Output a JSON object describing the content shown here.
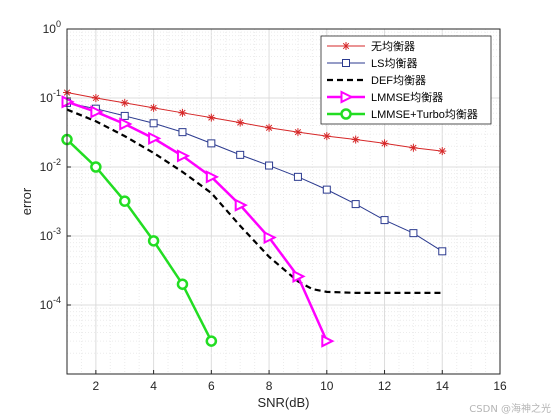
{
  "chart_data": {
    "type": "line",
    "title": "",
    "xlabel": "SNR(dB)",
    "ylabel": "error",
    "xlim": [
      1,
      16
    ],
    "ylim": [
      1e-05,
      1
    ],
    "yscale": "log",
    "grid": true,
    "minor_grid": true,
    "legend_position": "top-right",
    "x_ticks": [
      "2",
      "4",
      "6",
      "8",
      "10",
      "12",
      "14",
      "16"
    ],
    "y_ticks": [
      {
        "base": "10",
        "exp": "0"
      },
      {
        "base": "10",
        "exp": "-1"
      },
      {
        "base": "10",
        "exp": "-2"
      },
      {
        "base": "10",
        "exp": "-3"
      },
      {
        "base": "10",
        "exp": "-4"
      }
    ],
    "series": [
      {
        "name": "无均衡器",
        "color": "#d62728",
        "marker": "asterisk",
        "line_style": "solid",
        "line_width": 1,
        "x": [
          1,
          2,
          3,
          4,
          5,
          6,
          7,
          8,
          9,
          10,
          11,
          12,
          13,
          14
        ],
        "y": [
          0.12,
          0.1,
          0.085,
          0.072,
          0.061,
          0.052,
          0.044,
          0.037,
          0.032,
          0.028,
          0.025,
          0.022,
          0.019,
          0.017
        ]
      },
      {
        "name": "LS均衡器",
        "color": "#2b3a8f",
        "marker": "square",
        "line_style": "solid",
        "line_width": 1,
        "x": [
          1,
          2,
          3,
          4,
          5,
          6,
          7,
          8,
          9,
          10,
          11,
          12,
          13,
          14
        ],
        "y": [
          0.085,
          0.07,
          0.055,
          0.043,
          0.032,
          0.022,
          0.015,
          0.0105,
          0.0072,
          0.0047,
          0.0029,
          0.0017,
          0.0011,
          0.0006
        ]
      },
      {
        "name": "DEF均衡器",
        "color": "#000000",
        "marker": "none",
        "line_style": "dashed",
        "line_width": 2.2,
        "x": [
          1,
          2,
          3,
          4,
          5,
          6,
          7,
          8,
          9,
          9.5,
          10,
          11,
          12,
          13,
          14
        ],
        "y": [
          0.068,
          0.046,
          0.028,
          0.016,
          0.0085,
          0.0042,
          0.0014,
          0.0005,
          0.00022,
          0.00017,
          0.000155,
          0.00015,
          0.00015,
          0.00015,
          0.00015
        ]
      },
      {
        "name": "LMMSE均衡器",
        "color": "#ff00ff",
        "marker": "triangle-right",
        "line_style": "solid",
        "line_width": 2.5,
        "x": [
          1,
          2,
          3,
          4,
          5,
          6,
          7,
          8,
          9,
          10
        ],
        "y": [
          0.088,
          0.063,
          0.042,
          0.026,
          0.0145,
          0.0072,
          0.0028,
          0.00095,
          0.00026,
          3e-05
        ]
      },
      {
        "name": "LMMSE+Turbo均衡器",
        "color": "#22dd22",
        "marker": "circle",
        "line_style": "solid",
        "line_width": 2.5,
        "x": [
          1,
          2,
          3,
          4,
          5,
          6
        ],
        "y": [
          0.025,
          0.01,
          0.0032,
          0.00085,
          0.0002,
          3e-05
        ]
      }
    ]
  },
  "watermark": "CSDN @海神之光"
}
